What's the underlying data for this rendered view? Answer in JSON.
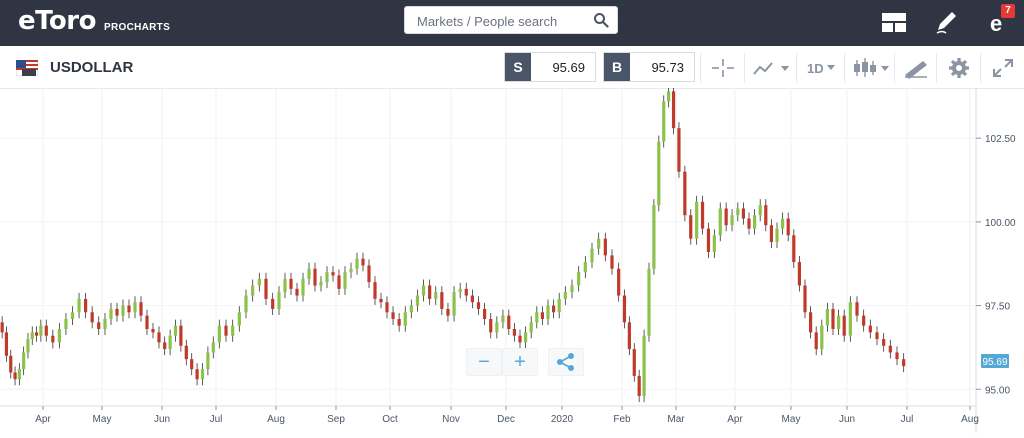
{
  "header": {
    "logo": "eToro",
    "logo_sub": "PROCHARTS",
    "search": {
      "placeholder": "Markets / People search"
    },
    "notification_count": "7",
    "icons": [
      "layout-icon",
      "pencil-icon",
      "etoro-profile-icon"
    ]
  },
  "instrument": {
    "symbol": "USDOLLAR",
    "sell": {
      "label": "S",
      "value": "95.69"
    },
    "buy": {
      "label": "B",
      "value": "95.73"
    },
    "timeframe": "1D"
  },
  "zoom_controls": {
    "minus": "−",
    "plus": "+"
  },
  "colors": {
    "up": "#8bc34a",
    "down": "#c0392b",
    "accent": "#55a8d5",
    "header_bg": "#2f3542"
  },
  "chart_data": {
    "type": "candlestick",
    "y_ticks": [
      "102.50",
      "100.00",
      "97.50",
      "95.00"
    ],
    "ylim": [
      94.5,
      104.0
    ],
    "x_ticks": [
      "Apr",
      "May",
      "Jun",
      "Jul",
      "Aug",
      "Sep",
      "Oct",
      "Nov",
      "Dec",
      "2020",
      "Feb",
      "Mar",
      "Apr",
      "May",
      "Jun",
      "Jul",
      "Aug"
    ],
    "last_price_label": "95.69",
    "grid": true,
    "series": [
      {
        "m": 0,
        "v": [
          97.0,
          96.7,
          96.0,
          95.5,
          95.3,
          95.6,
          96.1,
          96.5,
          96.7,
          96.6,
          96.9
        ]
      },
      {
        "m": 1,
        "v": [
          96.9,
          96.6,
          96.4,
          96.8,
          97.1,
          97.3,
          97.7,
          97.3,
          97.0,
          96.8
        ]
      },
      {
        "m": 2,
        "v": [
          96.8,
          97.1,
          97.4,
          97.2,
          97.5,
          97.3,
          97.6,
          97.2,
          96.8,
          96.7,
          96.4
        ]
      },
      {
        "m": 3,
        "v": [
          96.4,
          96.2,
          96.6,
          96.9,
          96.3,
          95.9,
          95.6,
          95.3,
          95.6,
          96.1,
          96.4
        ]
      },
      {
        "m": 4,
        "v": [
          96.4,
          96.9,
          96.6,
          96.9,
          97.3,
          97.8,
          98.1,
          98.3,
          97.7,
          97.4
        ]
      },
      {
        "m": 5,
        "v": [
          97.4,
          97.9,
          98.3,
          98.0,
          97.8,
          98.3,
          98.6,
          98.1,
          98.2,
          98.5,
          98.4
        ]
      },
      {
        "m": 6,
        "v": [
          98.4,
          98.0,
          98.5,
          98.6,
          98.9,
          98.7,
          98.2,
          97.7,
          97.6,
          97.3
        ]
      },
      {
        "m": 7,
        "v": [
          97.3,
          97.1,
          96.9,
          97.3,
          97.5,
          97.8,
          98.1,
          97.7,
          97.9,
          97.4,
          97.2
        ]
      },
      {
        "m": 8,
        "v": [
          97.2,
          97.9,
          98.0,
          97.8,
          97.6,
          97.4,
          97.1,
          96.7,
          97.0,
          97.2
        ]
      },
      {
        "m": 9,
        "v": [
          97.2,
          96.8,
          96.6,
          96.4,
          96.7,
          97.0,
          97.3,
          97.1,
          97.5,
          97.3,
          97.7
        ]
      },
      {
        "m": 10,
        "v": [
          97.7,
          97.9,
          98.1,
          98.5,
          98.8,
          99.2,
          99.5,
          99.0,
          98.6,
          97.8
        ]
      },
      {
        "m": 11,
        "v": [
          97.8,
          97.0,
          96.2,
          95.4,
          94.8,
          96.6,
          98.6,
          100.5,
          102.4,
          103.6,
          103.9,
          102.8
        ]
      },
      {
        "m": 12,
        "v": [
          102.8,
          101.5,
          100.2,
          99.5,
          100.6,
          99.8,
          99.1,
          99.6,
          100.4,
          99.9,
          100.2
        ]
      },
      {
        "m": 13,
        "v": [
          100.2,
          100.4,
          100.1,
          99.8,
          100.2,
          100.5,
          99.9,
          99.4,
          99.8,
          100.1,
          99.6
        ]
      },
      {
        "m": 14,
        "v": [
          99.6,
          98.8,
          98.1,
          97.3,
          96.7,
          96.2,
          96.9,
          97.4,
          96.8,
          97.2,
          96.6
        ]
      },
      {
        "m": 15,
        "v": [
          96.6,
          97.6,
          97.2,
          96.9,
          96.7,
          96.5,
          96.3,
          96.1,
          95.9,
          95.69
        ]
      }
    ]
  }
}
